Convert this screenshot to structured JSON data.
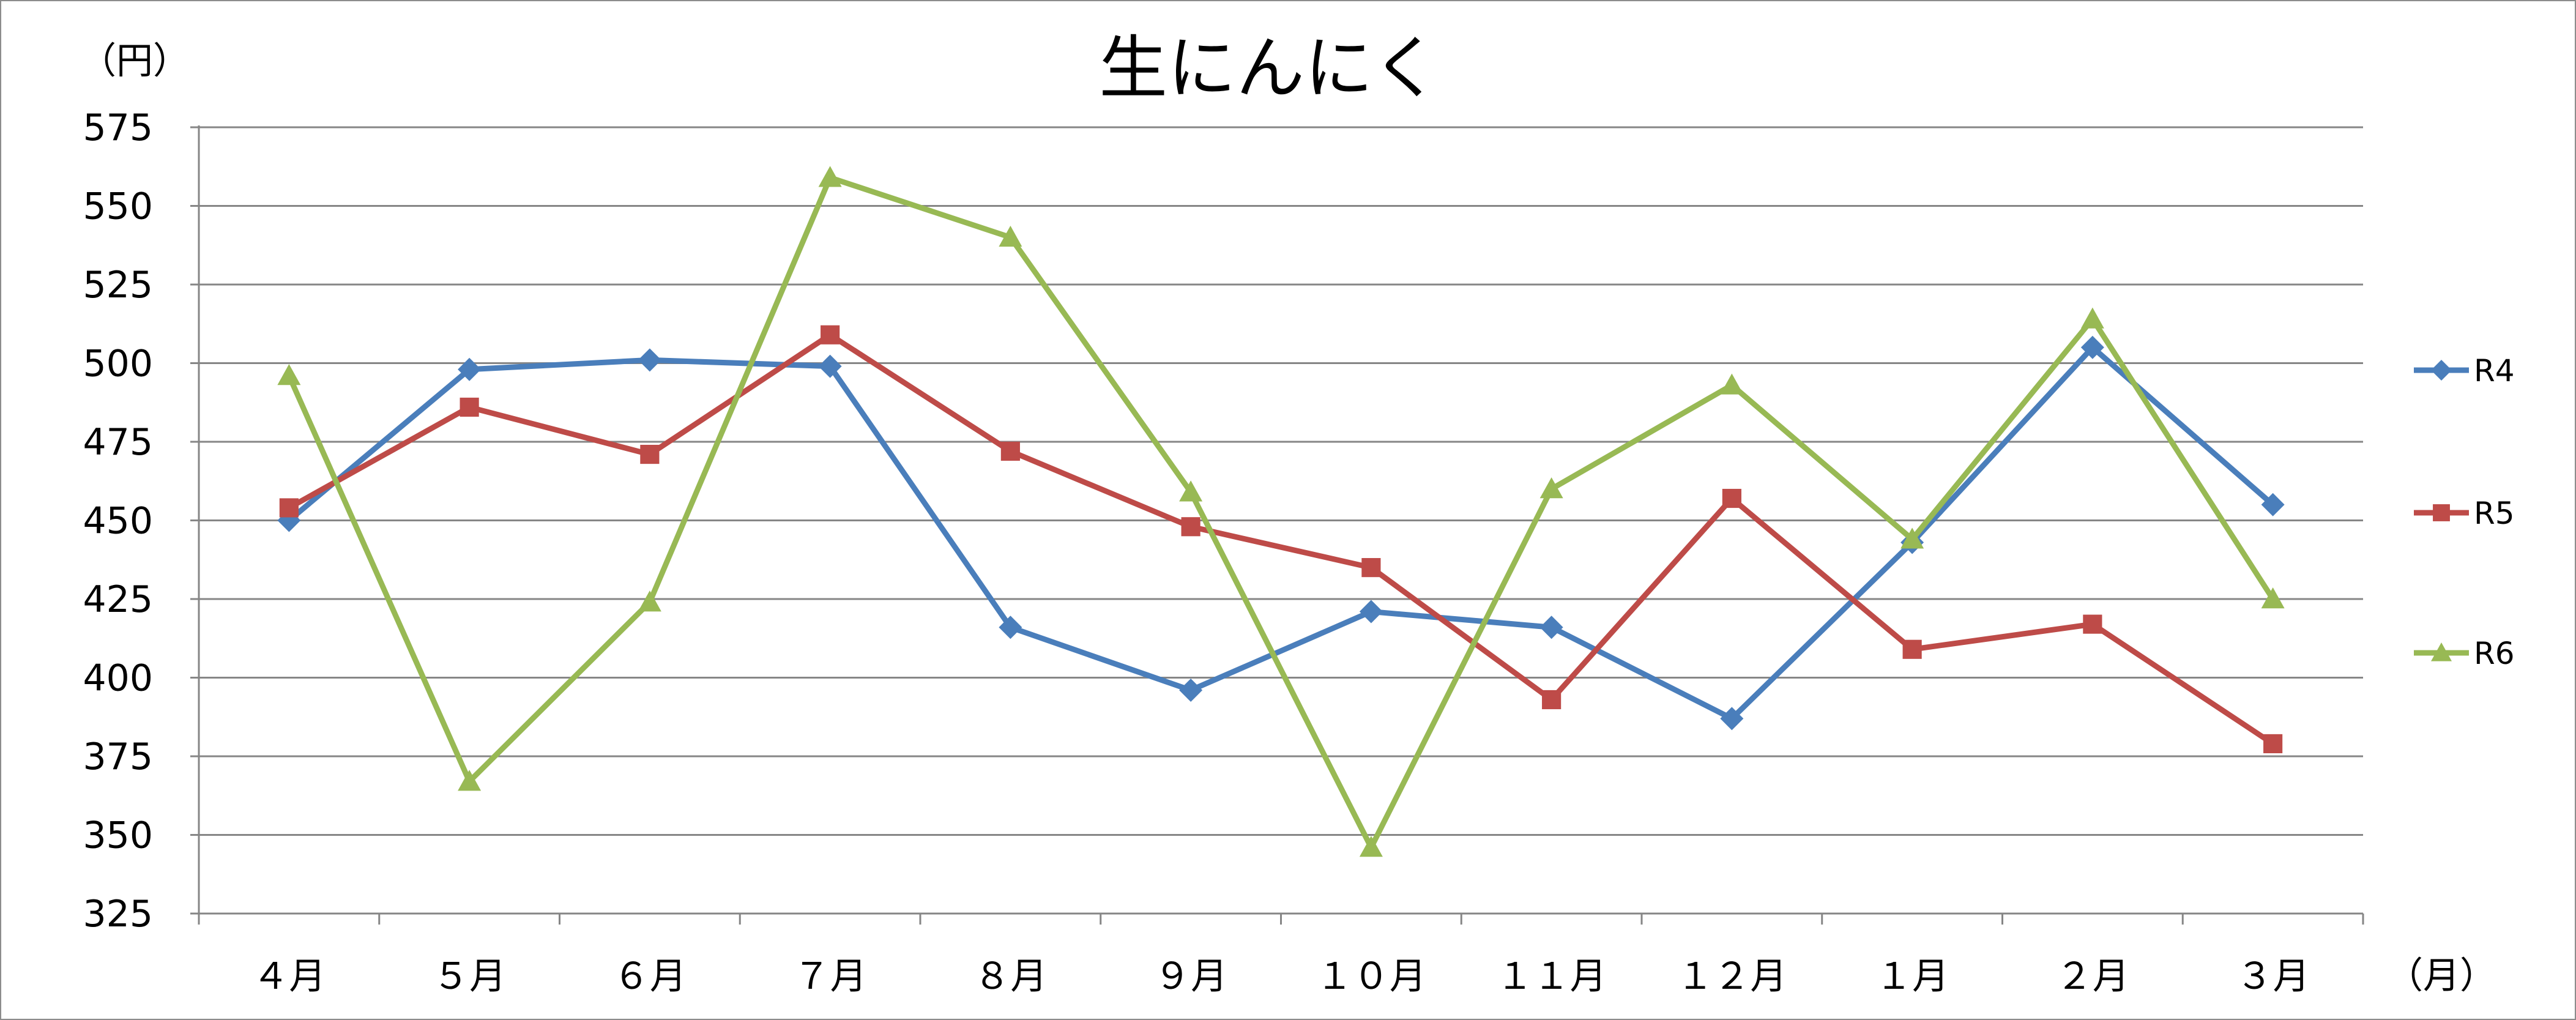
{
  "chart_data": {
    "type": "line",
    "title": "生にんにく",
    "ylabel": "（円）",
    "xlabel": "（月）",
    "categories": [
      "４月",
      "５月",
      "６月",
      "７月",
      "８月",
      "９月",
      "１０月",
      "１１月",
      "１２月",
      "１月",
      "２月",
      "３月"
    ],
    "ylim": [
      325,
      575
    ],
    "ytick_step": 25,
    "yticks": [
      "325",
      "350",
      "375",
      "400",
      "425",
      "450",
      "475",
      "500",
      "525",
      "550",
      "575"
    ],
    "grid": true,
    "legend_position": "right",
    "series": [
      {
        "name": "R4",
        "color": "#4a7ebb",
        "marker": "diamond",
        "values": [
          450,
          498,
          501,
          499,
          416,
          396,
          421,
          416,
          387,
          443,
          505,
          455
        ]
      },
      {
        "name": "R5",
        "color": "#be4b48",
        "marker": "square",
        "values": [
          454,
          486,
          471,
          509,
          472,
          448,
          435,
          393,
          457,
          409,
          417,
          379
        ]
      },
      {
        "name": "R6",
        "color": "#98b954",
        "marker": "triangle",
        "values": [
          496,
          367,
          424,
          559,
          540,
          459,
          346,
          460,
          493,
          444,
          514,
          425
        ]
      }
    ]
  }
}
